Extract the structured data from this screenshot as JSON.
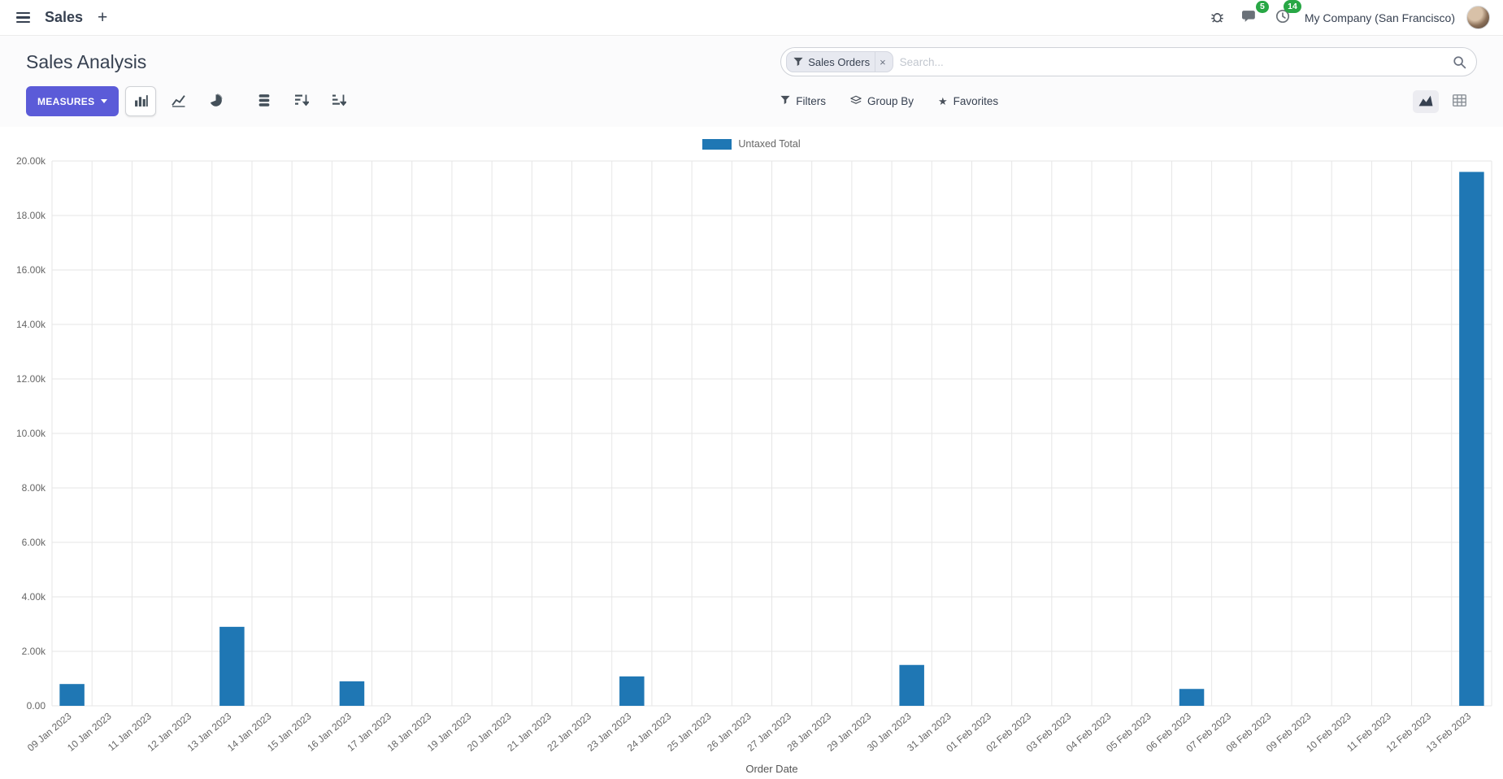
{
  "colors": {
    "accent": "#5B5BD8",
    "bar": "#1F77B4",
    "badge": "#28A745"
  },
  "navbar": {
    "app_name": "Sales",
    "plus_label": "+",
    "messages_count": "5",
    "activities_count": "14",
    "company": "My Company (San Francisco)"
  },
  "page": {
    "title": "Sales Analysis"
  },
  "search": {
    "facet_label": "Sales Orders",
    "facet_remove": "×",
    "placeholder": "Search..."
  },
  "toolbar": {
    "measures_label": "MEASURES",
    "filters_label": "Filters",
    "group_by_label": "Group By",
    "favorites_label": "Favorites"
  },
  "chart_data": {
    "type": "bar",
    "title": "",
    "legend": "Untaxed Total",
    "legend_position": "top",
    "xlabel": "Order Date",
    "ylabel": "",
    "ylim": [
      0,
      20000
    ],
    "y_tick_step": 2000,
    "y_ticks": [
      "0.00",
      "2.00k",
      "4.00k",
      "6.00k",
      "8.00k",
      "10.00k",
      "12.00k",
      "14.00k",
      "16.00k",
      "18.00k",
      "20.00k"
    ],
    "grid": true,
    "color": "#1F77B4",
    "categories": [
      "09 Jan 2023",
      "10 Jan 2023",
      "11 Jan 2023",
      "12 Jan 2023",
      "13 Jan 2023",
      "14 Jan 2023",
      "15 Jan 2023",
      "16 Jan 2023",
      "17 Jan 2023",
      "18 Jan 2023",
      "19 Jan 2023",
      "20 Jan 2023",
      "21 Jan 2023",
      "22 Jan 2023",
      "23 Jan 2023",
      "24 Jan 2023",
      "25 Jan 2023",
      "26 Jan 2023",
      "27 Jan 2023",
      "28 Jan 2023",
      "29 Jan 2023",
      "30 Jan 2023",
      "31 Jan 2023",
      "01 Feb 2023",
      "02 Feb 2023",
      "03 Feb 2023",
      "04 Feb 2023",
      "05 Feb 2023",
      "06 Feb 2023",
      "07 Feb 2023",
      "08 Feb 2023",
      "09 Feb 2023",
      "10 Feb 2023",
      "11 Feb 2023",
      "12 Feb 2023",
      "13 Feb 2023"
    ],
    "values": [
      800,
      0,
      0,
      0,
      2900,
      0,
      0,
      900,
      0,
      0,
      0,
      0,
      0,
      0,
      1080,
      0,
      0,
      0,
      0,
      0,
      0,
      1500,
      0,
      0,
      0,
      0,
      0,
      0,
      620,
      0,
      0,
      0,
      0,
      0,
      0,
      19600
    ]
  }
}
